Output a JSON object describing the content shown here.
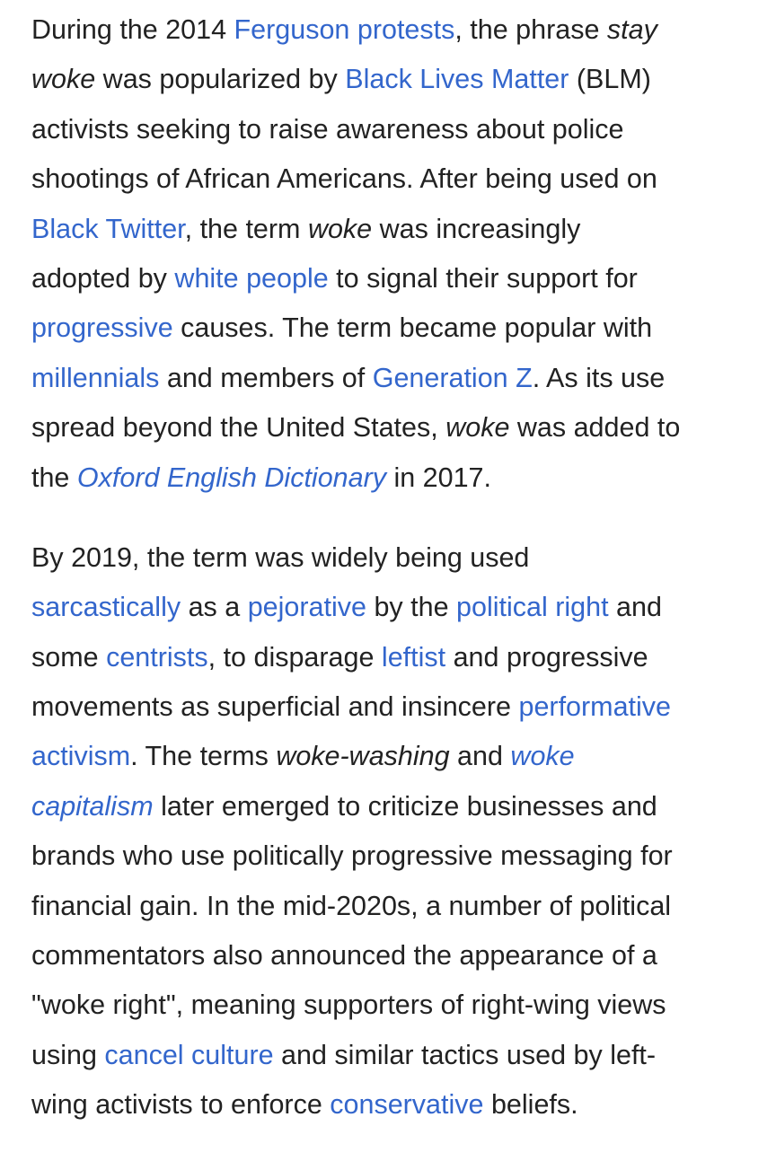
{
  "colors": {
    "text": "#222222",
    "link": "#3366cc",
    "background": "#ffffff"
  },
  "paragraphs": [
    {
      "lines": [
        [
          {
            "t": "During the 2014 "
          },
          {
            "t": "Ferguson protests",
            "link": true
          },
          {
            "t": ", the phrase "
          },
          {
            "t": "stay",
            "i": true
          }
        ],
        [
          {
            "t": "woke",
            "i": true
          },
          {
            "t": " was popularized by "
          },
          {
            "t": "Black Lives Matter",
            "link": true
          },
          {
            "t": " (BLM)"
          }
        ],
        [
          {
            "t": "activists seeking to raise awareness about police"
          }
        ],
        [
          {
            "t": "shootings of African Americans. After being used on"
          }
        ],
        [
          {
            "t": "Black Twitter",
            "link": true
          },
          {
            "t": ", the term "
          },
          {
            "t": "woke",
            "i": true
          },
          {
            "t": " was increasingly"
          }
        ],
        [
          {
            "t": "adopted by "
          },
          {
            "t": "white people",
            "link": true
          },
          {
            "t": " to signal their support for"
          }
        ],
        [
          {
            "t": "progressive",
            "link": true
          },
          {
            "t": " causes. The term became popular with"
          }
        ],
        [
          {
            "t": "millennials",
            "link": true
          },
          {
            "t": " and members of "
          },
          {
            "t": "Generation Z",
            "link": true
          },
          {
            "t": ". As its use"
          }
        ],
        [
          {
            "t": "spread beyond the United States, "
          },
          {
            "t": "woke",
            "i": true
          },
          {
            "t": " was added to"
          }
        ],
        [
          {
            "t": "the "
          },
          {
            "t": "Oxford English Dictionary",
            "link": true,
            "i": true
          },
          {
            "t": " in 2017."
          }
        ]
      ]
    },
    {
      "lines": [
        [
          {
            "t": "By 2019, the term was widely being used"
          }
        ],
        [
          {
            "t": "sarcastically",
            "link": true
          },
          {
            "t": " as a "
          },
          {
            "t": "pejorative",
            "link": true
          },
          {
            "t": " by the "
          },
          {
            "t": "political right",
            "link": true
          },
          {
            "t": " and"
          }
        ],
        [
          {
            "t": "some "
          },
          {
            "t": "centrists",
            "link": true
          },
          {
            "t": ", to disparage "
          },
          {
            "t": "leftist",
            "link": true
          },
          {
            "t": " and progressive"
          }
        ],
        [
          {
            "t": "movements as superficial and insincere "
          },
          {
            "t": "performative",
            "link": true
          }
        ],
        [
          {
            "t": "activism",
            "link": true
          },
          {
            "t": ". The terms "
          },
          {
            "t": "woke-washing",
            "i": true
          },
          {
            "t": " and "
          },
          {
            "t": "woke",
            "link": true,
            "i": true
          }
        ],
        [
          {
            "t": "capitalism",
            "link": true,
            "i": true
          },
          {
            "t": " later emerged to criticize businesses and"
          }
        ],
        [
          {
            "t": "brands who use politically progressive messaging for"
          }
        ],
        [
          {
            "t": "financial gain. In the mid-2020s, a number of political"
          }
        ],
        [
          {
            "t": "commentators also announced the appearance of a"
          }
        ],
        [
          {
            "t": "\"woke right\", meaning supporters of right-wing views"
          }
        ],
        [
          {
            "t": "using "
          },
          {
            "t": "cancel culture",
            "link": true
          },
          {
            "t": " and similar tactics used by left-"
          }
        ],
        [
          {
            "t": "wing activists to enforce "
          },
          {
            "t": "conservative",
            "link": true
          },
          {
            "t": " beliefs."
          }
        ]
      ]
    }
  ]
}
